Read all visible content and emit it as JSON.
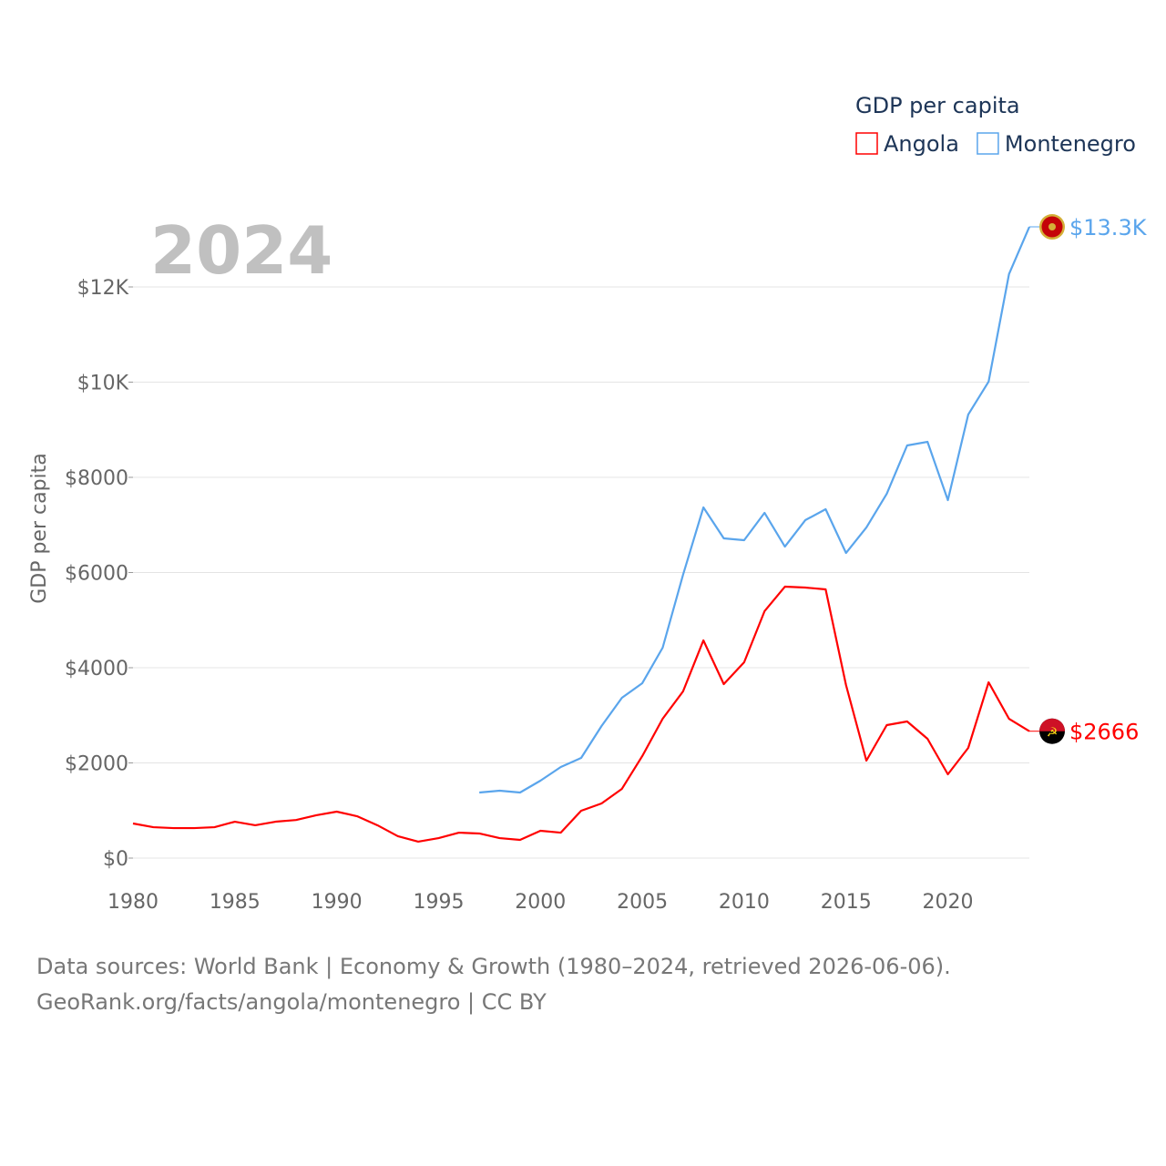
{
  "chart_data": {
    "type": "line",
    "title": "GDP per capita",
    "year_label": "2024",
    "ylabel": "GDP per capita",
    "xlabel": "",
    "xlim": [
      1980,
      2024
    ],
    "ylim": [
      0,
      13500
    ],
    "x_ticks": [
      1980,
      1985,
      1990,
      1995,
      2000,
      2005,
      2010,
      2015,
      2020
    ],
    "y_ticks": [
      0,
      2000,
      4000,
      6000,
      8000,
      10000,
      12000
    ],
    "y_tick_labels": [
      "$0",
      "$2000",
      "$4000",
      "$6000",
      "$8000",
      "$10K",
      "$12K"
    ],
    "grid": true,
    "legend_placement": "top-right",
    "series": [
      {
        "name": "Angola",
        "color": "#ff0000",
        "end_label": "$2666",
        "x": [
          1980,
          1981,
          1982,
          1983,
          1984,
          1985,
          1986,
          1987,
          1988,
          1989,
          1990,
          1991,
          1992,
          1993,
          1994,
          1995,
          1996,
          1997,
          1998,
          1999,
          2000,
          2001,
          2002,
          2003,
          2004,
          2005,
          2006,
          2007,
          2008,
          2009,
          2010,
          2011,
          2012,
          2013,
          2014,
          2015,
          2016,
          2017,
          2018,
          2019,
          2020,
          2021,
          2022,
          2023,
          2024
        ],
        "values": [
          727,
          650,
          630,
          630,
          650,
          765,
          690,
          765,
          800,
          900,
          976,
          880,
          690,
          460,
          345,
          420,
          535,
          517,
          420,
          383,
          574,
          535,
          995,
          1148,
          1455,
          2144,
          2928,
          3502,
          4574,
          3655,
          4115,
          5187,
          5703,
          5684,
          5646,
          3636,
          2048,
          2794,
          2871,
          2507,
          1761,
          2316,
          3694,
          2928,
          2666
        ]
      },
      {
        "name": "Montenegro",
        "color": "#5aa5ec",
        "end_label": "$13.3K",
        "x": [
          1997,
          1998,
          1999,
          2000,
          2001,
          2002,
          2003,
          2004,
          2005,
          2006,
          2007,
          2008,
          2009,
          2010,
          2011,
          2012,
          2013,
          2014,
          2015,
          2016,
          2017,
          2018,
          2019,
          2020,
          2021,
          2022,
          2023,
          2024
        ],
        "values": [
          1378,
          1416,
          1378,
          1627,
          1914,
          2105,
          2775,
          3368,
          3675,
          4421,
          5952,
          7368,
          6718,
          6679,
          7254,
          6545,
          7100,
          7330,
          6411,
          6947,
          7655,
          8670,
          8746,
          7521,
          9320,
          10010,
          12268,
          13263
        ]
      }
    ]
  },
  "footer": {
    "line1": "Data sources: World Bank | Economy & Growth (1980–2024, retrieved 2026-06-06).",
    "line2": "GeoRank.org/facts/angola/montenegro | CC BY"
  }
}
